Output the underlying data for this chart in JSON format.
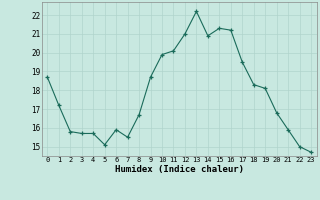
{
  "x": [
    0,
    1,
    2,
    3,
    4,
    5,
    6,
    7,
    8,
    9,
    10,
    11,
    12,
    13,
    14,
    15,
    16,
    17,
    18,
    19,
    20,
    21,
    22,
    23
  ],
  "y": [
    18.7,
    17.2,
    15.8,
    15.7,
    15.7,
    15.1,
    15.9,
    15.5,
    16.7,
    18.7,
    19.9,
    20.1,
    21.0,
    22.2,
    20.9,
    21.3,
    21.2,
    19.5,
    18.3,
    18.1,
    16.8,
    15.9,
    15.0,
    14.7
  ],
  "xlabel": "Humidex (Indice chaleur)",
  "bg_color": "#c8e8e0",
  "grid_color": "#b0d4cc",
  "line_color": "#1a6b5a",
  "marker_color": "#1a6b5a",
  "ylim": [
    14.5,
    22.7
  ],
  "yticks": [
    15,
    16,
    17,
    18,
    19,
    20,
    21,
    22
  ],
  "xticks": [
    0,
    1,
    2,
    3,
    4,
    5,
    6,
    7,
    8,
    9,
    10,
    11,
    12,
    13,
    14,
    15,
    16,
    17,
    18,
    19,
    20,
    21,
    22,
    23
  ],
  "xtick_labels": [
    "0",
    "1",
    "2",
    "3",
    "4",
    "5",
    "6",
    "7",
    "8",
    "9",
    "10",
    "11",
    "12",
    "13",
    "14",
    "15",
    "16",
    "17",
    "18",
    "19",
    "20",
    "21",
    "22",
    "23"
  ]
}
